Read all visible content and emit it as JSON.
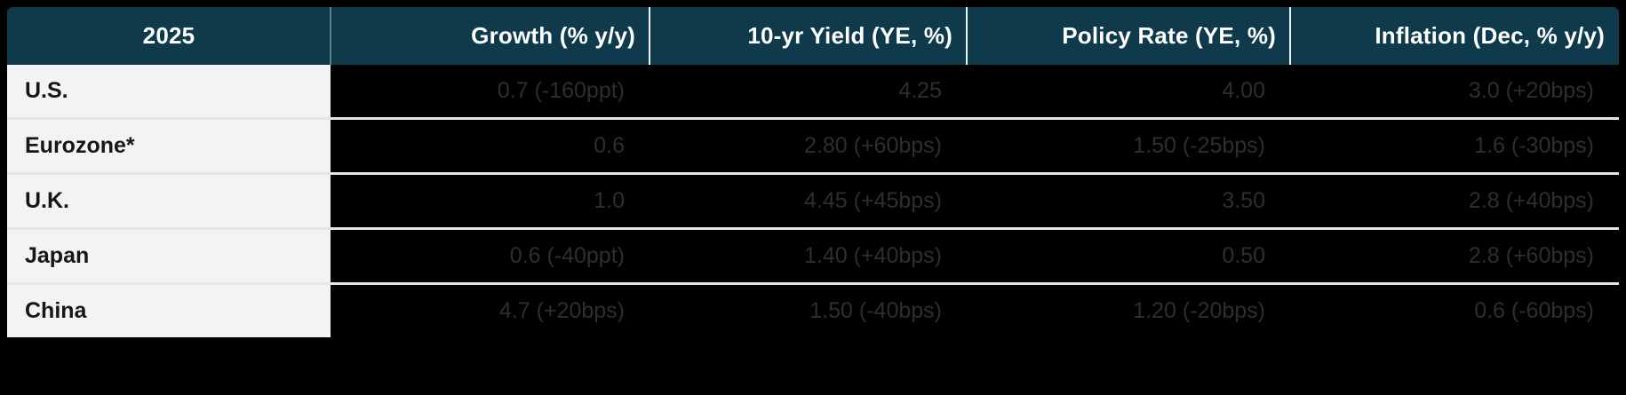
{
  "chart_data": {
    "type": "table",
    "title": "2025",
    "header": [
      "2025",
      "Growth (% y/y)",
      "10-yr Yield (YE, %)",
      "Policy Rate (YE, %)",
      "Inflation (Dec, % y/y)"
    ],
    "rows": [
      [
        "U.S.",
        "0.7 (-160ppt)",
        "4.25",
        "4.00",
        "3.0 (+20bps)"
      ],
      [
        "Eurozone*",
        "0.6",
        "2.80 (+60bps)",
        "1.50 (-25bps)",
        "1.6 (-30bps)"
      ],
      [
        "U.K.",
        "1.0",
        "4.45 (+45bps)",
        "3.50",
        "2.8 (+40bps)"
      ],
      [
        "Japan",
        "0.6 (-40ppt)",
        "1.40 (+40bps)",
        "0.50",
        "2.8 (+60bps)"
      ],
      [
        "China",
        "4.7 (+20bps)",
        "1.50 (-40bps)",
        "1.20 (-20bps)",
        "0.6 (-60bps)"
      ]
    ],
    "layout": {
      "legend": "none",
      "grid": "row-separators",
      "header_alignment": "right",
      "value_alignment": "right"
    }
  },
  "colors": {
    "page_bg": "#000000",
    "header_bg": "#0e3a4b",
    "header_text": "#ffffff",
    "region_cell_bg": "#f2f3f4",
    "region_text": "#141618",
    "value_cell_bg": "#000000",
    "value_text": "#2e2e2e",
    "row_separator": "#e4e6e7"
  }
}
